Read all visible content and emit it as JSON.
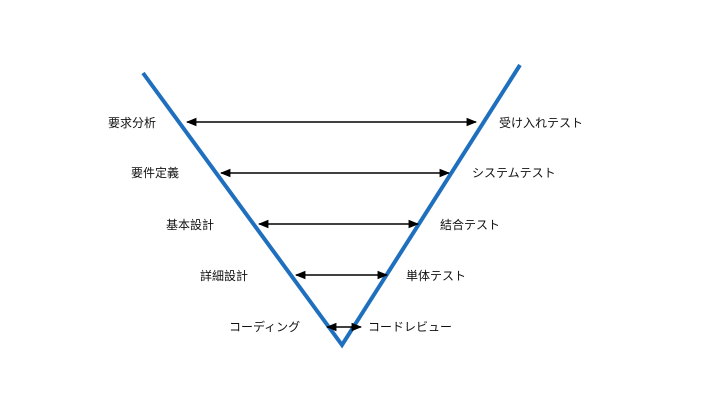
{
  "colors": {
    "v_line": "#1f6fbf",
    "arrow": "#000000",
    "text": "#111111",
    "background": "#ffffff"
  },
  "diagram": {
    "type": "V-model",
    "levels": [
      {
        "left": "要求分析",
        "right": "受け入れテスト"
      },
      {
        "left": "要件定義",
        "right": "システムテスト"
      },
      {
        "left": "基本設計",
        "right": "結合テスト"
      },
      {
        "left": "詳細設計",
        "right": "単体テスト"
      },
      {
        "left": "コーディング",
        "right": "コードレビュー"
      }
    ]
  }
}
